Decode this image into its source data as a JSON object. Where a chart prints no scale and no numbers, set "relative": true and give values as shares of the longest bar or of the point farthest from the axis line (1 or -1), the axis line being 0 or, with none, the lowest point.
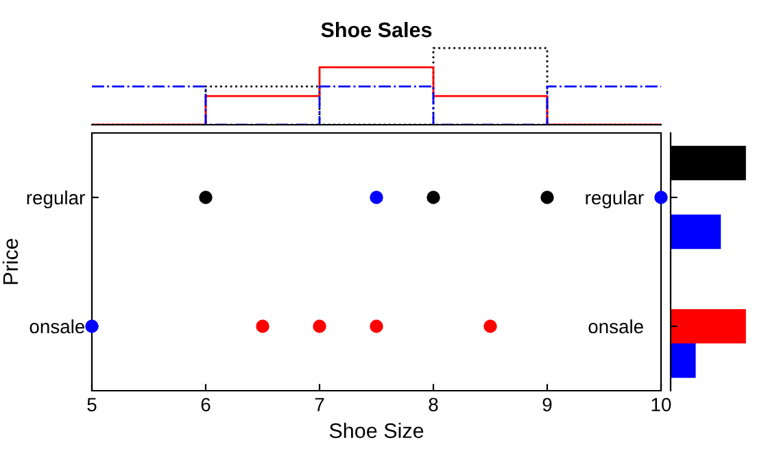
{
  "chart_data": [
    {
      "type": "scatter",
      "orientation": "horizontal",
      "xlabel": "Shoe Size",
      "ylabel": "Price",
      "xlim": [
        5,
        10
      ],
      "xticks": [
        5,
        6,
        7,
        8,
        9,
        10
      ],
      "categories": [
        "regular",
        "onsale"
      ],
      "marker": "circle",
      "legend": false,
      "grid": false,
      "series": [
        {
          "color": "#000000",
          "values": [
            6,
            null
          ]
        },
        {
          "color": "#000000",
          "values": [
            8,
            null
          ]
        },
        {
          "color": "#000000",
          "values": [
            9,
            null
          ]
        },
        {
          "color": "#0000ff",
          "values": [
            7.5,
            5
          ]
        },
        {
          "color": "#0000ff",
          "values": [
            10,
            null
          ]
        },
        {
          "color": "#ff0000",
          "values": [
            null,
            6.5
          ]
        },
        {
          "color": "#ff0000",
          "values": [
            null,
            7
          ]
        },
        {
          "color": "#ff0000",
          "values": [
            null,
            7.5
          ]
        },
        {
          "color": "#ff0000",
          "values": [
            null,
            8.5
          ]
        }
      ]
    },
    {
      "type": "step",
      "title": "Shoe Sales",
      "relative": true,
      "categories": [
        null,
        null,
        null,
        null,
        null,
        null
      ],
      "tick_labels": false,
      "series": [
        {
          "color": "#000000",
          "line_style": "dotted",
          "values": [
            0,
            0.5,
            0,
            1,
            0,
            0
          ]
        },
        {
          "color": "#ff0000",
          "line_style": "solid",
          "values": [
            0,
            0.375,
            0.75,
            0.375,
            0,
            0
          ]
        },
        {
          "color": "#0000ff",
          "line_style": "dashdot",
          "values": [
            0.5,
            0,
            0.5,
            0,
            0.5,
            0.5
          ]
        }
      ]
    },
    {
      "type": "bar",
      "orientation": "horizontal",
      "relative": true,
      "categories": [
        "regular",
        "onsale"
      ],
      "tick_labels": "y",
      "series": [
        {
          "color": "#000000",
          "values": [
            1,
            0
          ]
        },
        {
          "color": "#ff0000",
          "values": [
            0,
            1
          ]
        },
        {
          "color": "#0000ff",
          "values": [
            0.667,
            0.333
          ]
        }
      ]
    }
  ]
}
